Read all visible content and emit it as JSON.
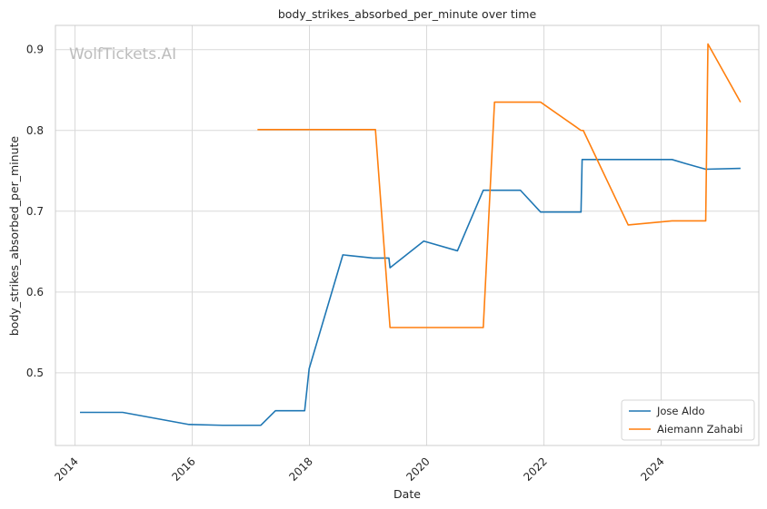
{
  "watermark": "WolfTickets.AI",
  "chart_data": {
    "type": "line",
    "title": "body_strikes_absorbed_per_minute over time",
    "xlabel": "Date",
    "ylabel": "body_strikes_absorbed_per_minute",
    "x_ticks": [
      "2014",
      "2016",
      "2018",
      "2020",
      "2022",
      "2024"
    ],
    "y_ticks": [
      "0.5",
      "0.6",
      "0.7",
      "0.8",
      "0.9"
    ],
    "xlim": [
      "2013-09-01",
      "2025-09-01"
    ],
    "ylim": [
      0.41,
      0.93
    ],
    "grid": true,
    "legend_position": "lower-right",
    "series": [
      {
        "name": "Jose Aldo",
        "color": "#1f77b4",
        "points": [
          [
            "2014-02-01",
            0.451
          ],
          [
            "2014-10-25",
            0.451
          ],
          [
            "2015-12-12",
            0.436
          ],
          [
            "2016-07-09",
            0.435
          ],
          [
            "2017-03-04",
            0.435
          ],
          [
            "2017-06-03",
            0.453
          ],
          [
            "2017-12-02",
            0.453
          ],
          [
            "2017-12-30",
            0.505
          ],
          [
            "2018-07-28",
            0.646
          ],
          [
            "2019-02-02",
            0.642
          ],
          [
            "2019-05-11",
            0.642
          ],
          [
            "2019-05-18",
            0.63
          ],
          [
            "2019-12-14",
            0.663
          ],
          [
            "2020-07-11",
            0.651
          ],
          [
            "2020-12-19",
            0.726
          ],
          [
            "2021-08-07",
            0.726
          ],
          [
            "2021-12-11",
            0.699
          ],
          [
            "2022-08-20",
            0.699
          ],
          [
            "2022-08-27",
            0.764
          ],
          [
            "2024-03-09",
            0.764
          ],
          [
            "2024-06-01",
            0.759
          ],
          [
            "2024-10-05",
            0.752
          ],
          [
            "2025-05-10",
            0.753
          ]
        ]
      },
      {
        "name": "Aiemann Zahabi",
        "color": "#ff7f0e",
        "points": [
          [
            "2017-02-11",
            0.801
          ],
          [
            "2019-02-16",
            0.801
          ],
          [
            "2019-05-18",
            0.556
          ],
          [
            "2020-12-19",
            0.556
          ],
          [
            "2021-02-27",
            0.835
          ],
          [
            "2021-12-11",
            0.835
          ],
          [
            "2022-08-20",
            0.8
          ],
          [
            "2022-09-03",
            0.8
          ],
          [
            "2023-06-10",
            0.683
          ],
          [
            "2024-03-09",
            0.688
          ],
          [
            "2024-10-05",
            0.688
          ],
          [
            "2024-10-19",
            0.907
          ],
          [
            "2025-05-10",
            0.835
          ]
        ]
      }
    ]
  }
}
